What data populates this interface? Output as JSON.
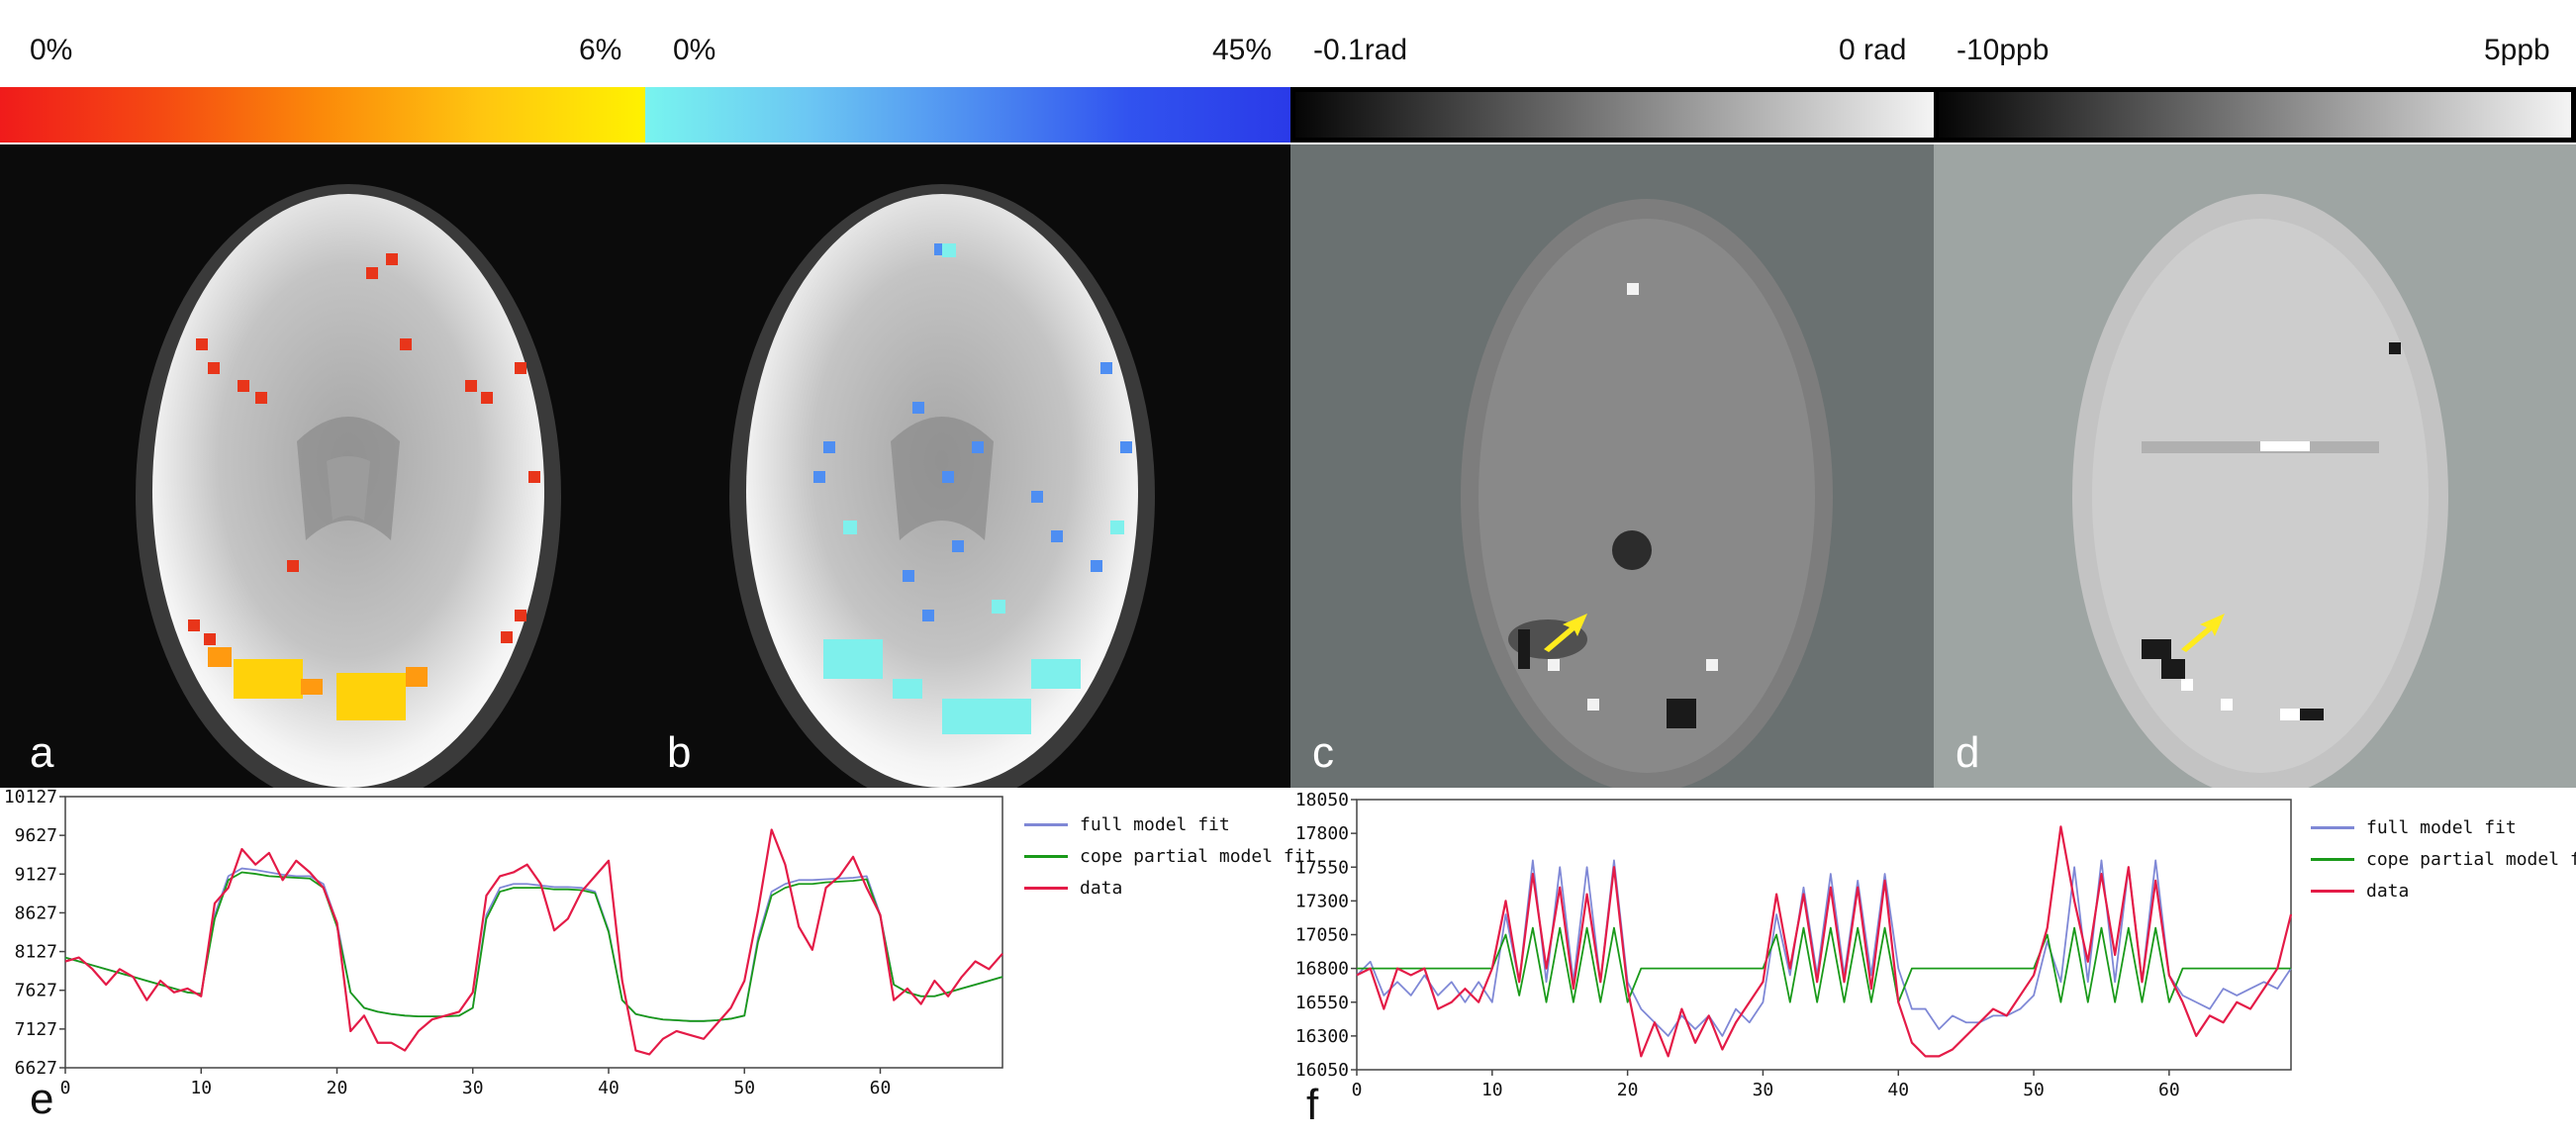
{
  "colorbars": [
    {
      "id": "a",
      "min_label": "0%",
      "max_label": "6%",
      "colors": [
        "#f01b1b",
        "#f54a12",
        "#fb8a0a",
        "#ffc610",
        "#fff200"
      ]
    },
    {
      "id": "b",
      "min_label": "0%",
      "max_label": "45%",
      "colors": [
        "#78f4ef",
        "#6cc7f3",
        "#4f8ff1",
        "#3153ef",
        "#2a3ae8"
      ]
    },
    {
      "id": "c",
      "min_label": "-0.1rad",
      "max_label": "0 rad",
      "colors": [
        "#050505",
        "#555555",
        "#a5a5a5",
        "#f4f4f4"
      ]
    },
    {
      "id": "d",
      "min_label": "-10ppb",
      "max_label": "5ppb",
      "colors": [
        "#050505",
        "#555555",
        "#a5a5a5",
        "#f4f4f4"
      ]
    }
  ],
  "panels": [
    {
      "label": "a",
      "background": "#0b0b0b"
    },
    {
      "label": "b",
      "background": "#0b0b0b"
    },
    {
      "label": "c",
      "background": "#6a7171"
    },
    {
      "label": "d",
      "background": "#9ea5a3"
    }
  ],
  "chart_data": [
    {
      "type": "line",
      "panel_label": "e",
      "x_ticks": [
        0,
        10,
        20,
        30,
        40,
        50,
        60
      ],
      "y_ticks": [
        6627,
        7127,
        7627,
        8127,
        8627,
        9127,
        9627,
        10127
      ],
      "xlim": [
        0,
        69
      ],
      "ylim": [
        6627,
        10127
      ],
      "legend_position": "right",
      "series": [
        {
          "name": "full model fit",
          "color": "#7f88d6",
          "values": [
            8050,
            8000,
            7950,
            7900,
            7850,
            7800,
            7750,
            7700,
            7650,
            7600,
            7580,
            8600,
            9100,
            9200,
            9180,
            9150,
            9120,
            9100,
            9100,
            9000,
            8500,
            7600,
            7400,
            7350,
            7320,
            7300,
            7290,
            7290,
            7290,
            7300,
            7400,
            8600,
            8950,
            9000,
            9000,
            8980,
            8960,
            8960,
            8950,
            8900,
            8400,
            7500,
            7320,
            7280,
            7250,
            7240,
            7230,
            7230,
            7240,
            7260,
            7300,
            8300,
            8900,
            9000,
            9050,
            9050,
            9060,
            9070,
            9080,
            9100,
            8600,
            7700,
            7600,
            7550,
            7550,
            7600,
            7650,
            7700,
            7750,
            7800
          ]
        },
        {
          "name": "cope partial model fit",
          "color": "#1a9a1a",
          "values": [
            8050,
            8000,
            7950,
            7900,
            7850,
            7800,
            7750,
            7700,
            7650,
            7600,
            7580,
            8550,
            9050,
            9150,
            9130,
            9100,
            9090,
            9080,
            9070,
            8950,
            8450,
            7600,
            7400,
            7350,
            7320,
            7300,
            7290,
            7290,
            7290,
            7300,
            7400,
            8550,
            8900,
            8950,
            8950,
            8950,
            8930,
            8930,
            8920,
            8880,
            8380,
            7500,
            7320,
            7280,
            7250,
            7240,
            7230,
            7230,
            7240,
            7260,
            7300,
            8250,
            8850,
            8950,
            9000,
            9000,
            9020,
            9030,
            9040,
            9060,
            8580,
            7700,
            7600,
            7550,
            7550,
            7600,
            7650,
            7700,
            7750,
            7800
          ]
        },
        {
          "name": "data",
          "color": "#e41b47",
          "values": [
            8000,
            8050,
            7900,
            7700,
            7900,
            7800,
            7500,
            7750,
            7600,
            7650,
            7550,
            8750,
            8950,
            9450,
            9250,
            9400,
            9050,
            9300,
            9150,
            8950,
            8500,
            7100,
            7300,
            6950,
            6950,
            6850,
            7100,
            7250,
            7300,
            7350,
            7600,
            8850,
            9100,
            9150,
            9250,
            9000,
            8400,
            8550,
            8900,
            9100,
            9300,
            7750,
            6850,
            6800,
            7000,
            7100,
            7050,
            7000,
            7200,
            7400,
            7750,
            8650,
            9700,
            9250,
            8450,
            8150,
            8950,
            9100,
            9350,
            8950,
            8600,
            7500,
            7650,
            7450,
            7750,
            7550,
            7800,
            8000,
            7900,
            8100
          ]
        }
      ]
    },
    {
      "type": "line",
      "panel_label": "f",
      "x_ticks": [
        0,
        10,
        20,
        30,
        40,
        50,
        60
      ],
      "y_ticks": [
        16050,
        16300,
        16550,
        16800,
        17050,
        17300,
        17550,
        17800,
        18050
      ],
      "xlim": [
        0,
        69
      ],
      "ylim": [
        16050,
        18050
      ],
      "legend_position": "right",
      "series": [
        {
          "name": "full model fit",
          "color": "#7f88d6",
          "values": [
            16750,
            16850,
            16600,
            16700,
            16600,
            16750,
            16600,
            16700,
            16550,
            16700,
            16550,
            17200,
            16700,
            17600,
            16700,
            17550,
            16700,
            17550,
            16700,
            17600,
            16700,
            16500,
            16400,
            16300,
            16450,
            16350,
            16450,
            16300,
            16500,
            16400,
            16550,
            17200,
            16750,
            17400,
            16750,
            17500,
            16750,
            17450,
            16750,
            17500,
            16800,
            16500,
            16500,
            16350,
            16450,
            16400,
            16400,
            16450,
            16450,
            16500,
            16600,
            17000,
            16700,
            17550,
            16700,
            17600,
            16700,
            17550,
            16700,
            17600,
            16750,
            16600,
            16550,
            16500,
            16650,
            16600,
            16650,
            16700,
            16650,
            16800
          ]
        },
        {
          "name": "cope partial model fit",
          "color": "#1a9a1a",
          "values": [
            16800,
            16800,
            16800,
            16800,
            16800,
            16800,
            16800,
            16800,
            16800,
            16800,
            16800,
            17050,
            16600,
            17100,
            16550,
            17100,
            16550,
            17100,
            16550,
            17100,
            16550,
            16800,
            16800,
            16800,
            16800,
            16800,
            16800,
            16800,
            16800,
            16800,
            16800,
            17050,
            16550,
            17100,
            16550,
            17100,
            16550,
            17100,
            16550,
            17100,
            16550,
            16800,
            16800,
            16800,
            16800,
            16800,
            16800,
            16800,
            16800,
            16800,
            16800,
            17050,
            16550,
            17100,
            16550,
            17100,
            16550,
            17100,
            16550,
            17100,
            16550,
            16800,
            16800,
            16800,
            16800,
            16800,
            16800,
            16800,
            16800,
            16800
          ]
        },
        {
          "name": "data",
          "color": "#e41b47",
          "values": [
            16750,
            16800,
            16500,
            16800,
            16750,
            16800,
            16500,
            16550,
            16650,
            16550,
            16800,
            17300,
            16700,
            17500,
            16800,
            17400,
            16650,
            17350,
            16700,
            17550,
            16650,
            16150,
            16400,
            16150,
            16500,
            16250,
            16450,
            16200,
            16400,
            16550,
            16700,
            17350,
            16800,
            17350,
            16700,
            17400,
            16700,
            17400,
            16650,
            17450,
            16550,
            16250,
            16150,
            16150,
            16200,
            16300,
            16400,
            16500,
            16450,
            16600,
            16750,
            17100,
            17850,
            17300,
            16850,
            17500,
            16900,
            17550,
            16700,
            17450,
            16750,
            16550,
            16300,
            16450,
            16400,
            16550,
            16500,
            16650,
            16800,
            17200
          ]
        }
      ]
    }
  ]
}
